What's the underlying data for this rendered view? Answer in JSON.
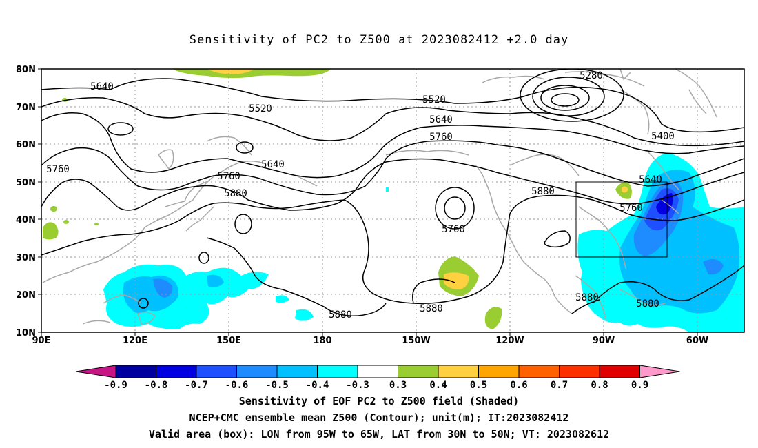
{
  "title": "Sensitivity of PC2 to Z500 at 2023082412 +2.0 day",
  "lat_labels": [
    "80N",
    "70N",
    "60N",
    "50N",
    "40N",
    "30N",
    "20N",
    "10N"
  ],
  "lon_labels": [
    "90E",
    "120E",
    "150E",
    "180",
    "150W",
    "120W",
    "90W",
    "60W"
  ],
  "contour_labels": [
    "5640",
    "5520",
    "5760",
    "5640",
    "5760",
    "5880",
    "5520",
    "5640",
    "5760",
    "5760",
    "5880",
    "5880",
    "5280",
    "5400",
    "5640",
    "5760",
    "5880",
    "5880",
    "5880"
  ],
  "colorbar": {
    "labels": [
      "-0.9",
      "-0.8",
      "-0.7",
      "-0.6",
      "-0.5",
      "-0.4",
      "-0.3",
      "0.3",
      "0.4",
      "0.5",
      "0.6",
      "0.7",
      "0.8",
      "0.9"
    ],
    "colors": [
      "#c71585",
      "#0000a0",
      "#0000e0",
      "#1e50ff",
      "#1e8cff",
      "#00c0ff",
      "#00ffff",
      "#ffffff",
      "#9acd32",
      "#ffd040",
      "#ffa500",
      "#ff6000",
      "#ff3000",
      "#e00000",
      "#ff99cc"
    ]
  },
  "captions": [
    "Sensitivity of EOF PC2 to Z500 field (Shaded)",
    "NCEP+CMC ensemble mean Z500 (Contour); unit(m); IT:2023082412",
    "Valid area (box): LON from 95W to 65W, LAT from 30N to 50N; VT: 2023082612"
  ]
}
